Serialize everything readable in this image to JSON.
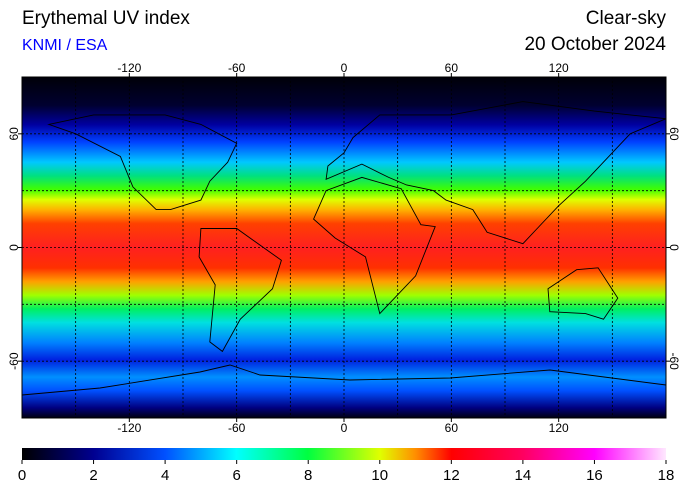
{
  "map": {
    "title": "Erythemal UV index",
    "source": "KNMI / ESA",
    "condition": "Clear-sky",
    "date": "20 October 2024",
    "lon_lim": [
      -180,
      180
    ],
    "lat_lim": [
      -90,
      90
    ],
    "lon_ticks": [
      -120,
      -60,
      0,
      60,
      120
    ],
    "lat_ticks": [
      60,
      0,
      -60
    ],
    "lon_grid": [
      -150,
      -120,
      -90,
      -60,
      -30,
      0,
      30,
      60,
      90,
      120,
      150
    ],
    "lat_grid": [
      60,
      30,
      0,
      -30,
      -60
    ],
    "colorbar": {
      "lim": [
        0,
        18
      ],
      "ticks": [
        0,
        2,
        4,
        6,
        8,
        10,
        12,
        14,
        16,
        18
      ]
    }
  }
}
